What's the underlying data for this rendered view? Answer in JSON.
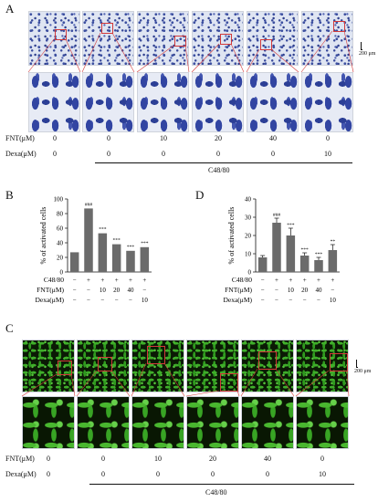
{
  "panel_labels": {
    "a": "A",
    "b": "B",
    "c": "C",
    "d": "D"
  },
  "scale_bar_text": "200 μm",
  "conditions": {
    "fnt_label": "FNT(μM)",
    "dexa_label": "Dexa(μM)",
    "c48_label": "C48/80",
    "fnt_values": [
      "0",
      "0",
      "10",
      "20",
      "40",
      "0"
    ],
    "dexa_values": [
      "0",
      "0",
      "0",
      "0",
      "0",
      "10"
    ]
  },
  "chart_data": [
    {
      "type": "bar",
      "panel": "B",
      "ylabel": "% of activated cells",
      "ylim": [
        0,
        100
      ],
      "yticks": [
        0,
        20,
        40,
        60,
        80,
        100
      ],
      "values": [
        27,
        87,
        53,
        38,
        29,
        34
      ],
      "significance": [
        "",
        "###",
        "***",
        "***",
        "***",
        "***"
      ],
      "c48_row": [
        "−",
        "+",
        "+",
        "+",
        "+",
        "+"
      ],
      "fnt_row": [
        "−",
        "−",
        "10",
        "20",
        "40",
        "−"
      ],
      "dexa_row": [
        "−",
        "−",
        "−",
        "−",
        "−",
        "10"
      ],
      "row_labels": [
        "C48/80",
        "FNT(μM)",
        "Dexa(μM)"
      ]
    },
    {
      "type": "bar",
      "panel": "D",
      "ylabel": "% of activated cells",
      "ylim": [
        0,
        40
      ],
      "yticks": [
        0,
        10,
        20,
        30,
        40
      ],
      "values": [
        8,
        27,
        20,
        9,
        6.5,
        12
      ],
      "errors": [
        1,
        2.5,
        4,
        1.5,
        1.5,
        3
      ],
      "significance": [
        "",
        "###",
        "***",
        "***",
        "***",
        "**"
      ],
      "c48_row": [
        "−",
        "+",
        "+",
        "+",
        "+",
        "+"
      ],
      "fnt_row": [
        "−",
        "−",
        "10",
        "20",
        "40",
        "−"
      ],
      "dexa_row": [
        "−",
        "−",
        "−",
        "−",
        "−",
        "10"
      ],
      "row_labels": [
        "C48/80",
        "FNT(μM)",
        "Dexa(μM)"
      ]
    }
  ]
}
